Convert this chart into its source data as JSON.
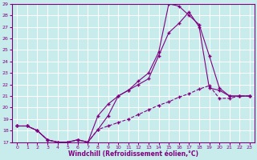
{
  "xlabel": "Windchill (Refroidissement éolien,°C)",
  "bg_color": "#c8ecec",
  "line_color": "#800080",
  "grid_color": "#ffffff",
  "xlim": [
    -0.5,
    23.5
  ],
  "ylim": [
    17,
    29
  ],
  "xticks": [
    0,
    1,
    2,
    3,
    4,
    5,
    6,
    7,
    8,
    9,
    10,
    11,
    12,
    13,
    14,
    15,
    16,
    17,
    18,
    19,
    20,
    21,
    22,
    23
  ],
  "yticks": [
    17,
    18,
    19,
    20,
    21,
    22,
    23,
    24,
    25,
    26,
    27,
    28,
    29
  ],
  "line1_x": [
    0,
    1,
    2,
    3,
    4,
    5,
    6,
    7,
    8,
    9,
    10,
    11,
    12,
    13,
    14,
    15,
    16,
    17,
    18,
    19,
    20,
    21,
    22,
    23
  ],
  "line1_y": [
    18.4,
    18.4,
    18.0,
    17.2,
    17.0,
    17.0,
    17.2,
    17.0,
    18.1,
    19.3,
    21.0,
    21.5,
    22.3,
    23.0,
    24.8,
    29.0,
    28.8,
    28.0,
    27.2,
    24.5,
    21.7,
    21.0,
    21.0,
    21.0
  ],
  "line2_x": [
    0,
    1,
    2,
    3,
    4,
    5,
    6,
    7,
    8,
    9,
    10,
    11,
    12,
    13,
    14,
    15,
    16,
    17,
    18,
    19,
    20,
    21,
    22,
    23
  ],
  "line2_y": [
    18.4,
    18.4,
    18.0,
    17.2,
    17.0,
    17.0,
    17.2,
    17.0,
    19.3,
    20.3,
    21.0,
    21.5,
    22.0,
    22.5,
    24.5,
    26.5,
    27.3,
    28.3,
    27.0,
    21.7,
    21.5,
    21.0,
    21.0,
    21.0
  ],
  "line3_x": [
    0,
    1,
    2,
    3,
    4,
    5,
    6,
    7,
    8,
    9,
    10,
    11,
    12,
    13,
    14,
    15,
    16,
    17,
    18,
    19,
    20,
    21,
    22,
    23
  ],
  "line3_y": [
    18.4,
    18.4,
    18.0,
    17.2,
    17.0,
    17.0,
    17.2,
    17.0,
    18.1,
    18.4,
    18.7,
    19.0,
    19.4,
    19.8,
    20.2,
    20.5,
    20.9,
    21.2,
    21.6,
    21.9,
    20.8,
    20.8,
    21.0,
    21.0
  ]
}
